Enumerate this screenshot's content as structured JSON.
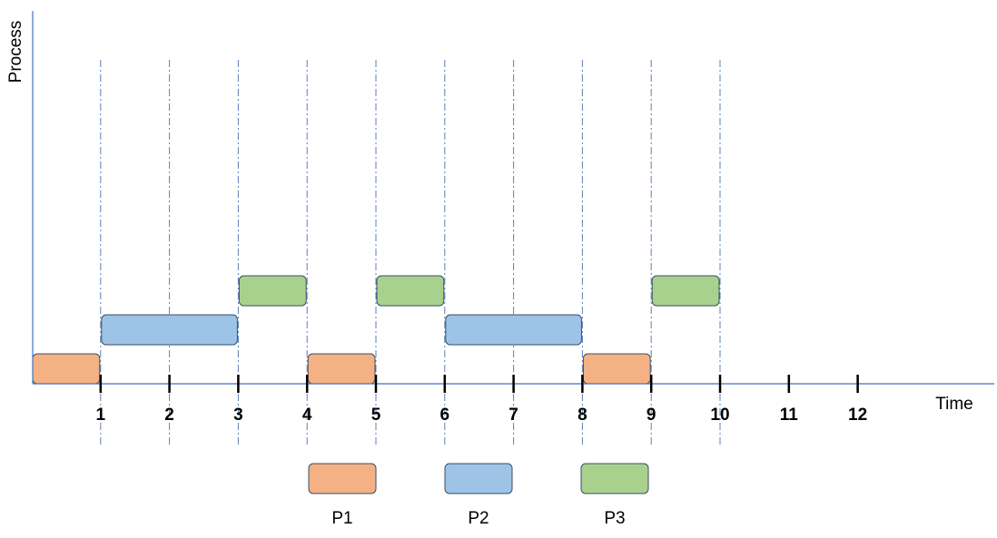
{
  "axes": {
    "x_title": "Time",
    "y_title": "Process",
    "ticks": [
      "1",
      "2",
      "3",
      "4",
      "5",
      "6",
      "7",
      "8",
      "9",
      "10",
      "11",
      "12"
    ],
    "line_color": "#4472C4",
    "guide_color": "#5B7FB8"
  },
  "guides_at": [
    1,
    2,
    3,
    4,
    5,
    6,
    7,
    8,
    9,
    10
  ],
  "processes": [
    {
      "name": "P1",
      "color": "#F4B183",
      "row": 0
    },
    {
      "name": "P2",
      "color": "#9DC3E6",
      "row": 1
    },
    {
      "name": "P3",
      "color": "#A9D18E",
      "row": 2
    }
  ],
  "schedule": [
    {
      "process": "P1",
      "start": 0,
      "end": 1
    },
    {
      "process": "P2",
      "start": 1,
      "end": 3
    },
    {
      "process": "P3",
      "start": 3,
      "end": 4
    },
    {
      "process": "P1",
      "start": 4,
      "end": 5
    },
    {
      "process": "P3",
      "start": 5,
      "end": 6
    },
    {
      "process": "P2",
      "start": 6,
      "end": 8
    },
    {
      "process": "P1",
      "start": 8,
      "end": 9
    },
    {
      "process": "P3",
      "start": 9,
      "end": 10
    }
  ],
  "legend": [
    {
      "name": "P1",
      "color": "#F4B183"
    },
    {
      "name": "P2",
      "color": "#9DC3E6"
    },
    {
      "name": "P3",
      "color": "#A9D18E"
    }
  ]
}
